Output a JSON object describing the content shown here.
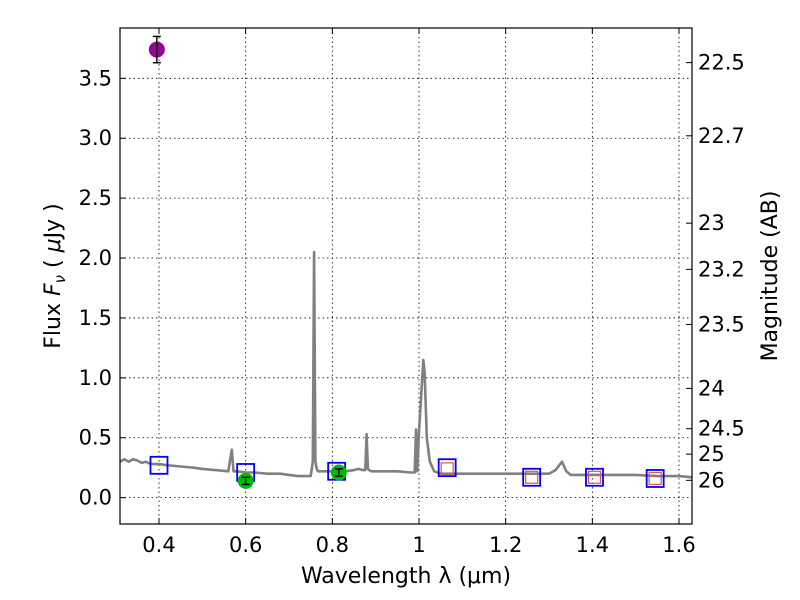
{
  "chart_data": {
    "type": "scatter",
    "xlabel": "Wavelength  λ (μm)",
    "ylabel_text": "Flux",
    "ylabel_math_symbol": "F",
    "ylabel_math_sub": "ν",
    "ylabel_unit_open": "( ",
    "ylabel_unit_mu": "μ",
    "ylabel_unit_rest": "Jy )",
    "y2label": "Magnitude (AB)",
    "xlim": [
      0.31,
      1.63
    ],
    "ylim": [
      -0.22,
      3.92
    ],
    "grid": true,
    "x_ticks": [
      {
        "value": 0.4,
        "label": "0.4"
      },
      {
        "value": 0.6,
        "label": "0.6"
      },
      {
        "value": 0.8,
        "label": "0.8"
      },
      {
        "value": 1.0,
        "label": "1"
      },
      {
        "value": 1.2,
        "label": "1.2"
      },
      {
        "value": 1.4,
        "label": "1.4"
      },
      {
        "value": 1.6,
        "label": "1.6"
      }
    ],
    "y_ticks": [
      {
        "value": 0.0,
        "label": "0.0"
      },
      {
        "value": 0.5,
        "label": "0.5"
      },
      {
        "value": 1.0,
        "label": "1.0"
      },
      {
        "value": 1.5,
        "label": "1.5"
      },
      {
        "value": 2.0,
        "label": "2.0"
      },
      {
        "value": 2.5,
        "label": "2.5"
      },
      {
        "value": 3.0,
        "label": "3.0"
      },
      {
        "value": 3.5,
        "label": "3.5"
      }
    ],
    "magnitude_ticks": [
      {
        "mag": 22.5,
        "label": "22.5"
      },
      {
        "mag": 22.7,
        "label": "22.7"
      },
      {
        "mag": 23.0,
        "label": "23"
      },
      {
        "mag": 23.2,
        "label": "23.2"
      },
      {
        "mag": 23.5,
        "label": "23.5"
      },
      {
        "mag": 24.0,
        "label": "24"
      },
      {
        "mag": 24.5,
        "label": "24.5"
      },
      {
        "mag": 25.0,
        "label": "25"
      },
      {
        "mag": 26.0,
        "label": "26"
      }
    ],
    "series": [
      {
        "name": "template-spectrum",
        "kind": "line",
        "color": "#808080",
        "x": [
          0.31,
          0.32,
          0.33,
          0.34,
          0.35,
          0.36,
          0.37,
          0.38,
          0.4,
          0.42,
          0.45,
          0.48,
          0.5,
          0.53,
          0.56,
          0.568,
          0.572,
          0.576,
          0.58,
          0.6,
          0.62,
          0.65,
          0.68,
          0.7,
          0.72,
          0.74,
          0.75,
          0.755,
          0.758,
          0.761,
          0.764,
          0.767,
          0.77,
          0.8,
          0.83,
          0.85,
          0.86,
          0.87,
          0.876,
          0.879,
          0.882,
          0.885,
          0.89,
          0.92,
          0.95,
          0.98,
          0.99,
          0.993,
          0.996,
          1.0,
          1.005,
          1.01,
          1.013,
          1.018,
          1.025,
          1.035,
          1.05,
          1.08,
          1.1,
          1.15,
          1.2,
          1.25,
          1.3,
          1.315,
          1.33,
          1.34,
          1.35,
          1.4,
          1.45,
          1.5,
          1.55,
          1.6,
          1.63
        ],
        "y": [
          0.3,
          0.32,
          0.3,
          0.32,
          0.31,
          0.29,
          0.3,
          0.28,
          0.28,
          0.27,
          0.26,
          0.25,
          0.24,
          0.23,
          0.22,
          0.4,
          0.22,
          0.22,
          0.22,
          0.21,
          0.21,
          0.2,
          0.2,
          0.19,
          0.18,
          0.18,
          0.18,
          0.3,
          2.05,
          0.3,
          0.24,
          0.22,
          0.22,
          0.22,
          0.22,
          0.23,
          0.24,
          0.23,
          0.23,
          0.53,
          0.24,
          0.23,
          0.22,
          0.22,
          0.22,
          0.21,
          0.21,
          0.57,
          0.22,
          0.55,
          0.85,
          1.15,
          1.05,
          0.5,
          0.3,
          0.22,
          0.2,
          0.2,
          0.2,
          0.2,
          0.2,
          0.2,
          0.2,
          0.23,
          0.3,
          0.22,
          0.19,
          0.19,
          0.19,
          0.19,
          0.18,
          0.18,
          0.17
        ]
      },
      {
        "name": "blue-squares",
        "kind": "open-square",
        "color": "#0000ff",
        "x": [
          0.4,
          0.6,
          0.81,
          1.065,
          1.26,
          1.405,
          1.545
        ],
        "y": [
          0.27,
          0.21,
          0.22,
          0.25,
          0.17,
          0.17,
          0.16
        ]
      },
      {
        "name": "red-squares",
        "kind": "open-square-small",
        "color": "#e05050",
        "x": [
          1.065,
          1.26,
          1.405,
          1.545
        ],
        "y": [
          0.24,
          0.17,
          0.17,
          0.16
        ]
      },
      {
        "name": "green-points",
        "kind": "filled-circle",
        "color": "#00bb00",
        "x": [
          0.6,
          0.815
        ],
        "y": [
          0.14,
          0.21
        ],
        "yerr": [
          0.03,
          0.03
        ]
      },
      {
        "name": "magenta-point",
        "kind": "filled-circle",
        "color": "#990099",
        "x": [
          0.395
        ],
        "y": [
          3.74
        ],
        "yerr": [
          0.11
        ]
      }
    ]
  }
}
